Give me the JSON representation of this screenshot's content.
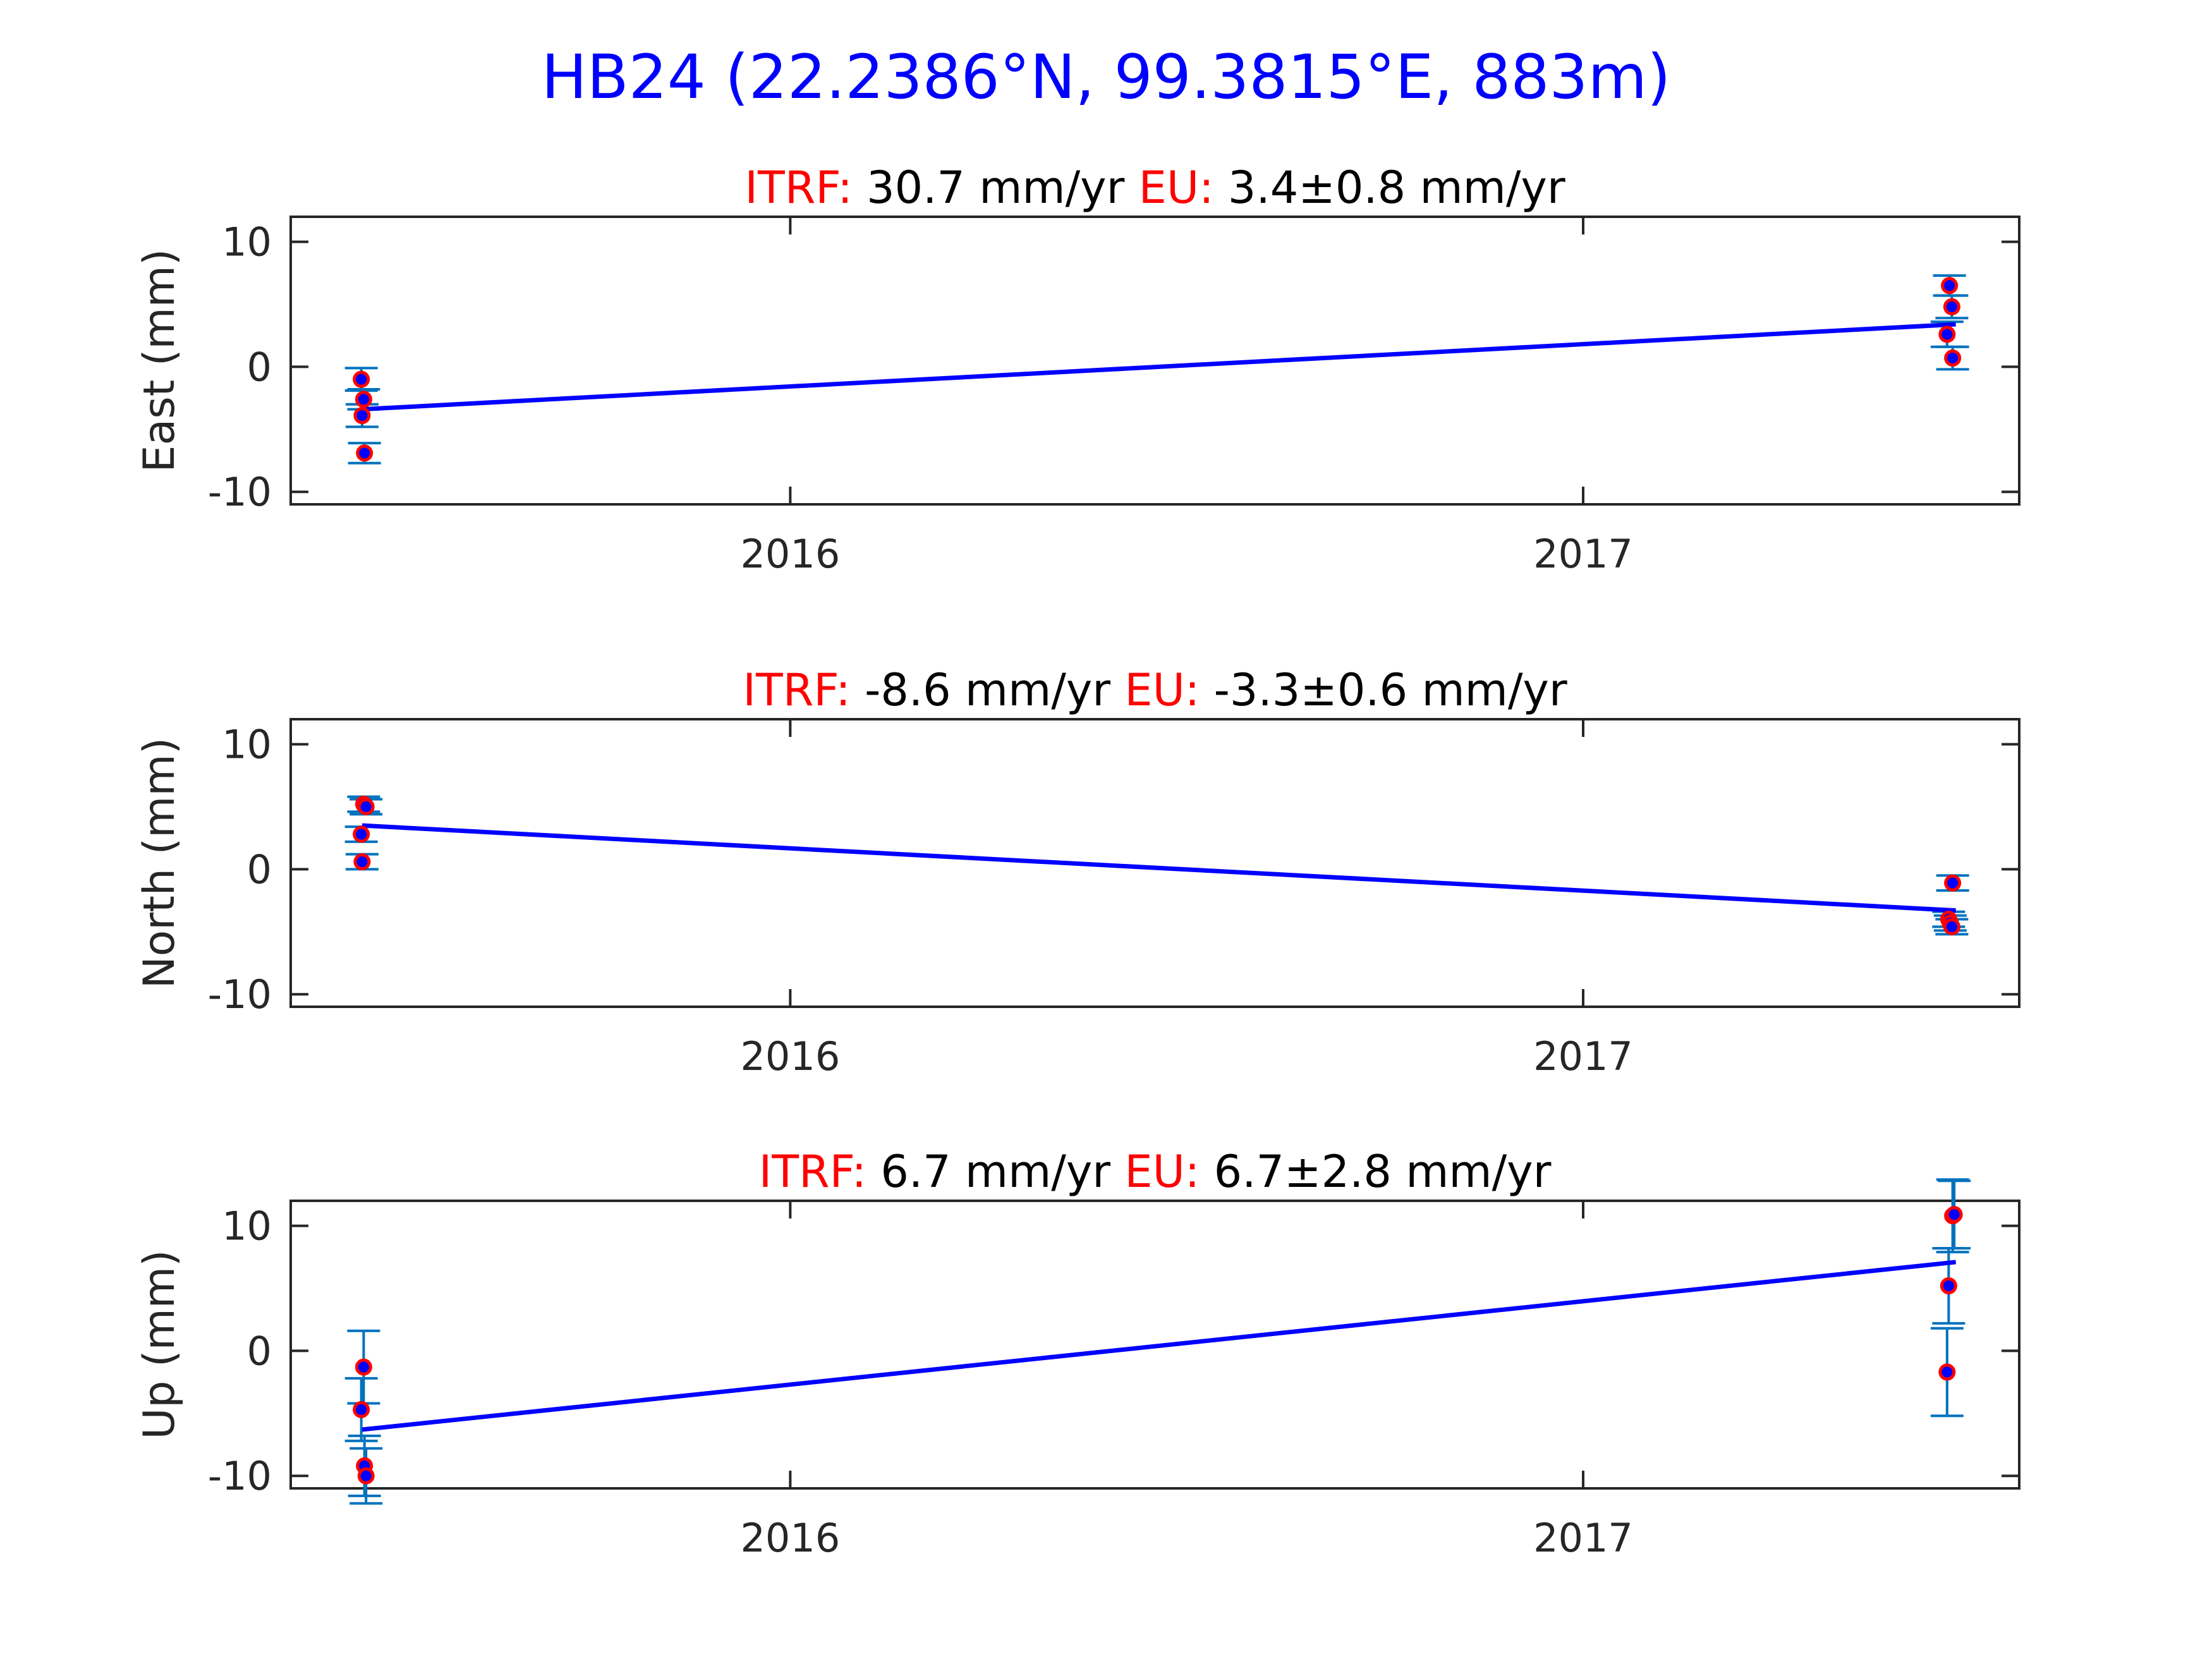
{
  "title": "HB24 (22.2386°N, 99.3815°E, 883m)",
  "colors": {
    "title": "#0000ff",
    "label_red": "#ff0000",
    "fit_line": "#0000ff",
    "errorbar": "#0072bd",
    "point_fill": "#0000ff",
    "point_edge": "#ff0000",
    "axis": "#262626",
    "text": "#000000"
  },
  "chart_data": [
    {
      "type": "scatter",
      "ylabel": "East (mm)",
      "subtitle": {
        "itrf_label": "ITRF:",
        "itrf_value": "30.7 mm/yr",
        "eu_label": "EU:",
        "eu_value": "3.4±0.8 mm/yr"
      },
      "xlim": [
        2015.37,
        2017.55
      ],
      "ylim": [
        -11,
        12
      ],
      "xticks": [
        2016,
        2017
      ],
      "xtick_labels": [
        "2016",
        "2017"
      ],
      "yticks": [
        -10,
        0,
        10
      ],
      "ytick_labels": [
        "-10",
        "0",
        "10"
      ],
      "points": [
        {
          "x": 2015.459,
          "y": -1.0,
          "err": 0.9
        },
        {
          "x": 2015.462,
          "y": -2.6,
          "err": 0.8
        },
        {
          "x": 2015.46,
          "y": -3.9,
          "err": 0.9
        },
        {
          "x": 2015.463,
          "y": -6.9,
          "err": 0.8
        },
        {
          "x": 2017.462,
          "y": 6.5,
          "err": 0.8
        },
        {
          "x": 2017.465,
          "y": 4.8,
          "err": 0.9
        },
        {
          "x": 2017.459,
          "y": 2.6,
          "err": 1.0
        },
        {
          "x": 2017.466,
          "y": 0.7,
          "err": 0.9
        }
      ],
      "fit": {
        "x": [
          2015.46,
          2017.47
        ],
        "y": [
          -3.4,
          3.4
        ]
      }
    },
    {
      "type": "scatter",
      "ylabel": "North (mm)",
      "subtitle": {
        "itrf_label": "ITRF:",
        "itrf_value": "-8.6 mm/yr",
        "eu_label": "EU:",
        "eu_value": "-3.3±0.6 mm/yr"
      },
      "xlim": [
        2015.37,
        2017.55
      ],
      "ylim": [
        -11,
        12
      ],
      "xticks": [
        2016,
        2017
      ],
      "xtick_labels": [
        "2016",
        "2017"
      ],
      "yticks": [
        -10,
        0,
        10
      ],
      "ytick_labels": [
        "-10",
        "0",
        "10"
      ],
      "points": [
        {
          "x": 2015.462,
          "y": 5.2,
          "err": 0.6
        },
        {
          "x": 2015.465,
          "y": 5.0,
          "err": 0.6
        },
        {
          "x": 2015.459,
          "y": 2.8,
          "err": 0.6
        },
        {
          "x": 2015.46,
          "y": 0.6,
          "err": 0.6
        },
        {
          "x": 2017.466,
          "y": -1.1,
          "err": 0.6
        },
        {
          "x": 2017.461,
          "y": -4.0,
          "err": 0.6
        },
        {
          "x": 2017.463,
          "y": -4.3,
          "err": 0.6
        },
        {
          "x": 2017.465,
          "y": -4.6,
          "err": 0.6
        }
      ],
      "fit": {
        "x": [
          2015.46,
          2017.47
        ],
        "y": [
          3.5,
          -3.3
        ]
      }
    },
    {
      "type": "scatter",
      "ylabel": "Up (mm)",
      "subtitle": {
        "itrf_label": "ITRF:",
        "itrf_value": "6.7 mm/yr",
        "eu_label": "EU:",
        "eu_value": "6.7±2.8 mm/yr"
      },
      "xlim": [
        2015.37,
        2017.55
      ],
      "ylim": [
        -11,
        12
      ],
      "xticks": [
        2016,
        2017
      ],
      "xtick_labels": [
        "2016",
        "2017"
      ],
      "yticks": [
        -10,
        0,
        10
      ],
      "ytick_labels": [
        "-10",
        "0",
        "10"
      ],
      "points": [
        {
          "x": 2015.462,
          "y": -1.3,
          "err": 2.9
        },
        {
          "x": 2015.459,
          "y": -4.7,
          "err": 2.5
        },
        {
          "x": 2015.463,
          "y": -9.2,
          "err": 2.4
        },
        {
          "x": 2015.465,
          "y": -10.0,
          "err": 2.2
        },
        {
          "x": 2017.466,
          "y": 10.8,
          "err": 2.9
        },
        {
          "x": 2017.468,
          "y": 10.9,
          "err": 2.7
        },
        {
          "x": 2017.461,
          "y": 5.2,
          "err": 3.0
        },
        {
          "x": 2017.459,
          "y": -1.7,
          "err": 3.5
        }
      ],
      "fit": {
        "x": [
          2015.46,
          2017.47
        ],
        "y": [
          -6.3,
          7.1
        ]
      }
    }
  ]
}
